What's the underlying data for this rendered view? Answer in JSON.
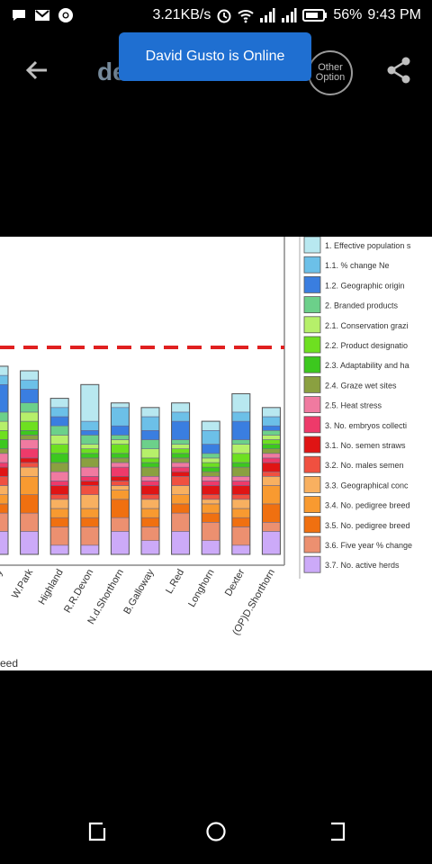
{
  "status_bar": {
    "icons_left": [
      "chat-icon",
      "gmail-icon",
      "chrome-icon"
    ],
    "speed": "3.21KB/s",
    "battery": "56%",
    "time": "9:43 PM"
  },
  "app_bar": {
    "brand": "denooo",
    "other_option_label": "Other Option"
  },
  "toast": {
    "text": "David Gusto is Online"
  },
  "image": {
    "chart_data": {
      "type": "bar",
      "stacked": true,
      "categories": [
        "Galloway",
        "W.Park",
        "Highland",
        "R.R.Devon",
        "N.d.Shorthorn",
        "B.Galloway",
        "L.Red",
        "Longhorn",
        "Dexter",
        "(OP)D.Shorthorn"
      ],
      "category_labels": [
        "...way",
        "W.Park",
        "Highland",
        "R.R.Devon",
        "N.d.Shorthorn",
        "B.Galloway",
        "L.Red",
        "Longhorn",
        "Dexter",
        "(OP)D.Shorthorn"
      ],
      "xlabel_fragment": "eed",
      "series": [
        {
          "name": "1. Effective population s",
          "color": "#b8e8f0",
          "values": [
            1,
            1,
            1,
            4,
            0.5,
            1,
            1,
            1,
            2,
            1
          ]
        },
        {
          "name": "1.1. % change Ne",
          "color": "#6cc0e8",
          "values": [
            1,
            1,
            1,
            1,
            2,
            1.5,
            1,
            1.5,
            1,
            1
          ]
        },
        {
          "name": "1.2. Geographic origin",
          "color": "#3a7ee0",
          "values": [
            3,
            1.5,
            1,
            0.5,
            1,
            1,
            2,
            1,
            2,
            0.5
          ]
        },
        {
          "name": "2. Branded products",
          "color": "#6cd08a",
          "values": [
            1,
            1,
            1,
            1,
            0.5,
            1,
            0.5,
            0.5,
            0.5,
            0.5
          ]
        },
        {
          "name": "2.1. Conservation grazi",
          "color": "#b6f06a",
          "values": [
            1,
            1,
            1,
            0.5,
            0.5,
            1,
            0.5,
            0.5,
            1,
            0.5
          ]
        },
        {
          "name": "2.2. Product designatio",
          "color": "#6ee020",
          "values": [
            1,
            1,
            1,
            0.5,
            1,
            0.5,
            0.5,
            0.5,
            1,
            0.5
          ]
        },
        {
          "name": "2.3. Adaptability and ha",
          "color": "#3cc81e",
          "values": [
            1,
            0.5,
            1,
            0.5,
            0.5,
            0.5,
            0.5,
            0.5,
            0.5,
            0.5
          ]
        },
        {
          "name": "2.4. Graze wet sites",
          "color": "#8aa040",
          "values": [
            0.5,
            0.5,
            1,
            1,
            0.5,
            1,
            0.5,
            0.5,
            1,
            0.5
          ]
        },
        {
          "name": "2.5. Heat stress",
          "color": "#f07aa0",
          "values": [
            1,
            1,
            1,
            1,
            0.5,
            0.5,
            0.5,
            0.5,
            0.5,
            0.5
          ]
        },
        {
          "name": "3. No. embryos collecti",
          "color": "#ee3a6a",
          "values": [
            0.5,
            1,
            0.5,
            0.5,
            1,
            0.5,
            0.5,
            0.5,
            0.5,
            0.5
          ]
        },
        {
          "name": "3.1. No. semen straws",
          "color": "#e01414",
          "values": [
            1,
            0.5,
            1,
            0.5,
            0.5,
            1,
            0.5,
            1,
            1,
            1
          ]
        },
        {
          "name": "3.2. No. males semen",
          "color": "#f05040",
          "values": [
            1,
            0.5,
            0.5,
            1,
            0.5,
            0.5,
            1,
            0.5,
            0.5,
            0.5
          ]
        },
        {
          "name": "3.3. Geographical conc",
          "color": "#f8b060",
          "values": [
            1,
            1,
            1,
            1.5,
            0.5,
            1,
            1,
            0.5,
            1,
            1
          ]
        },
        {
          "name": "3.4. No. pedigree breed",
          "color": "#f89a30",
          "values": [
            1,
            2,
            1,
            1,
            1,
            1,
            1,
            1,
            1,
            2
          ]
        },
        {
          "name": "3.5. No. pedigree breed",
          "color": "#f07010",
          "values": [
            1,
            2,
            1,
            1,
            2,
            1,
            1,
            1,
            1,
            2
          ]
        },
        {
          "name": "3.6. Five year % change",
          "color": "#ec9070",
          "values": [
            2,
            2,
            2,
            2,
            1.5,
            1.5,
            2,
            2,
            2,
            1
          ]
        },
        {
          "name": "3.7. No. active herds",
          "color": "#ccaaf8",
          "values": [
            2.5,
            2.5,
            1,
            1,
            2.5,
            1.5,
            2.5,
            1.5,
            1,
            2.5
          ]
        }
      ],
      "threshold_line": {
        "style": "dashed",
        "color": "#e02020"
      }
    }
  },
  "nav": {
    "items": [
      "recent-apps-icon",
      "home-icon",
      "back-icon"
    ]
  }
}
